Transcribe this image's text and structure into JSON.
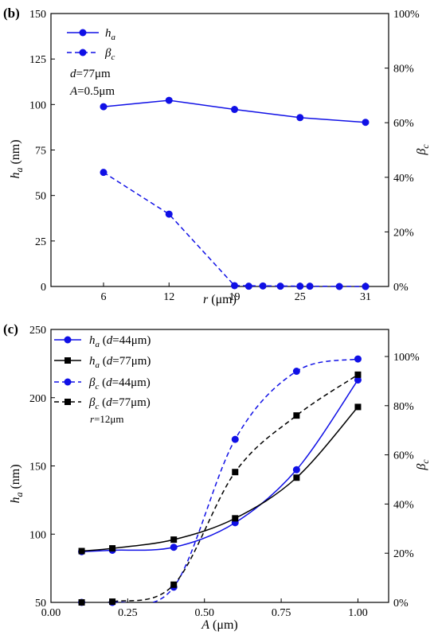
{
  "colors": {
    "blue": "#1010e6",
    "black": "#000000"
  },
  "chart_data": [
    {
      "panel": "(b)",
      "type": "line",
      "x": [
        6,
        12,
        19,
        25,
        31
      ],
      "xtick_labels": [
        "6",
        "12",
        "19",
        "25",
        "31"
      ],
      "xlabel": {
        "var": "r",
        "unit": " (μm)"
      },
      "ylabel_left": {
        "var": "h",
        "sub": "a",
        "unit": " (nm)"
      },
      "ylabel_right": {
        "var": "β",
        "sub": "c"
      },
      "ylim_left": [
        0,
        150
      ],
      "yticks_left": [
        "0",
        "25",
        "50",
        "75",
        "100",
        "125",
        "150"
      ],
      "ylim_right": [
        0,
        1
      ],
      "yticks_right": [
        "0%",
        "20%",
        "40%",
        "60%",
        "80%",
        "100%"
      ],
      "legend_placement": "top-left",
      "annotations": [
        {
          "var": "d",
          "text": "=77μm"
        },
        {
          "var": "A",
          "text": "=0.5μm"
        }
      ],
      "series": [
        {
          "name": {
            "var": "h",
            "sub": "a"
          },
          "axis": "left",
          "style": "solid",
          "color": "#1010e6",
          "marker": "circle",
          "values": [
            98.8,
            102.3,
            97.3,
            92.8,
            90.2
          ]
        },
        {
          "name": {
            "var": "β",
            "sub": "c"
          },
          "axis": "right",
          "style": "dashed",
          "color": "#1010e6",
          "marker": "circle",
          "values": [
            0.418,
            0.265,
            0.003,
            0.001,
            0.0
          ],
          "extra_points": {
            "x": [
              20.3,
              21.6,
              23.2,
              25.9,
              28.6,
              31
            ],
            "y": [
              0.001,
              0.002,
              0.001,
              0.001,
              0.0,
              0.0
            ]
          }
        }
      ]
    },
    {
      "panel": "(c)",
      "type": "line",
      "x": [
        0.1,
        0.2,
        0.4,
        0.6,
        0.8,
        1.0
      ],
      "xtick_labels": [
        "0.00",
        "0.25",
        "0.50",
        "0.75",
        "1.00"
      ],
      "xlim": [
        0,
        1.1
      ],
      "xlabel": {
        "var": "A",
        "unit": " (μm)"
      },
      "ylabel_left": {
        "var": "h",
        "sub": "a",
        "unit": " (nm)"
      },
      "ylabel_right": {
        "var": "β",
        "sub": "c"
      },
      "ylim_left": [
        50,
        250
      ],
      "yticks_left": [
        "50",
        "100",
        "150",
        "200",
        "250"
      ],
      "ylim_right": [
        0,
        1.11
      ],
      "yticks_right": [
        "0%",
        "20%",
        "40%",
        "60%",
        "80%",
        "100%"
      ],
      "legend_placement": "top-left",
      "annotations": [
        {
          "var": "r",
          "text": "=12μm"
        }
      ],
      "series": [
        {
          "name": {
            "var": "h",
            "sub": "a",
            "tail": " (",
            "dvar": "d",
            "dtext": "=44μm)"
          },
          "axis": "left",
          "style": "solid",
          "color": "#1010e6",
          "marker": "circle",
          "values": [
            87.2,
            88.2,
            90.4,
            108.4,
            147.2,
            213.0
          ]
        },
        {
          "name": {
            "var": "h",
            "sub": "a",
            "tail": " (",
            "dvar": "d",
            "dtext": "=77μm)"
          },
          "axis": "left",
          "style": "solid",
          "color": "#000000",
          "marker": "square",
          "values": [
            87.6,
            89.6,
            96.0,
            111.6,
            141.4,
            193.2
          ]
        },
        {
          "name": {
            "var": "β",
            "sub": "c",
            "tail": " (",
            "dvar": "d",
            "dtext": "=44μm)"
          },
          "axis": "right",
          "style": "dashed",
          "color": "#1010e6",
          "marker": "circle",
          "values": [
            0.0,
            0.0,
            0.062,
            0.663,
            0.94,
            0.99
          ]
        },
        {
          "name": {
            "var": "β",
            "sub": "c",
            "tail": " (",
            "dvar": "d",
            "dtext": "=77μm)"
          },
          "axis": "right",
          "style": "dashed",
          "color": "#000000",
          "marker": "square",
          "values": [
            0.0,
            0.003,
            0.072,
            0.53,
            0.76,
            0.926
          ]
        }
      ]
    }
  ]
}
